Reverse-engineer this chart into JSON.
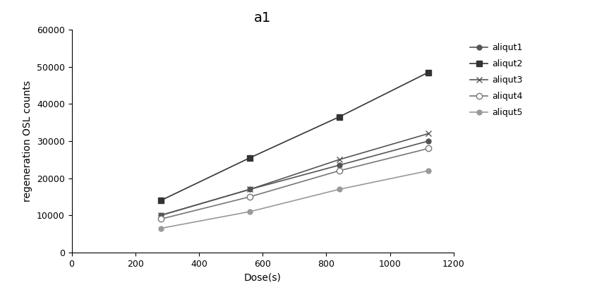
{
  "title": "a1",
  "xlabel": "Dose(s)",
  "ylabel": "regeneration OSL counts",
  "xlim": [
    0,
    1200
  ],
  "ylim": [
    0,
    60000
  ],
  "xticks": [
    0,
    200,
    400,
    600,
    800,
    1000,
    1200
  ],
  "yticks": [
    0,
    10000,
    20000,
    30000,
    40000,
    50000,
    60000
  ],
  "series": [
    {
      "label": "aliqut1",
      "x": [
        280,
        560,
        840,
        1120
      ],
      "y": [
        10000,
        17000,
        23500,
        30000
      ],
      "color": "#555555",
      "marker": "o",
      "markersize": 5,
      "linewidth": 1.2,
      "markerfacecolor": "#555555"
    },
    {
      "label": "aliqut2",
      "x": [
        280,
        560,
        840,
        1120
      ],
      "y": [
        14000,
        25500,
        36500,
        48500
      ],
      "color": "#333333",
      "marker": "s",
      "markersize": 6,
      "linewidth": 1.2,
      "markerfacecolor": "#333333"
    },
    {
      "label": "aliqut3",
      "x": [
        280,
        560,
        840,
        1120
      ],
      "y": [
        10000,
        17000,
        25000,
        32000
      ],
      "color": "#555555",
      "marker": "x",
      "markersize": 6,
      "linewidth": 1.2,
      "markerfacecolor": "#555555"
    },
    {
      "label": "aliqut4",
      "x": [
        280,
        560,
        840,
        1120
      ],
      "y": [
        9000,
        15000,
        22000,
        28000
      ],
      "color": "#777777",
      "marker": "o",
      "markersize": 6,
      "linewidth": 1.2,
      "markerfacecolor": "white"
    },
    {
      "label": "aliqut5",
      "x": [
        280,
        560,
        840,
        1120
      ],
      "y": [
        6500,
        11000,
        17000,
        22000
      ],
      "color": "#999999",
      "marker": "o",
      "markersize": 5,
      "linewidth": 1.2,
      "markerfacecolor": "#999999"
    }
  ],
  "background_color": "#ffffff",
  "title_fontsize": 14,
  "axis_label_fontsize": 10,
  "tick_fontsize": 9,
  "legend_fontsize": 9,
  "fig_width": 8.46,
  "fig_height": 4.21,
  "dpi": 100
}
